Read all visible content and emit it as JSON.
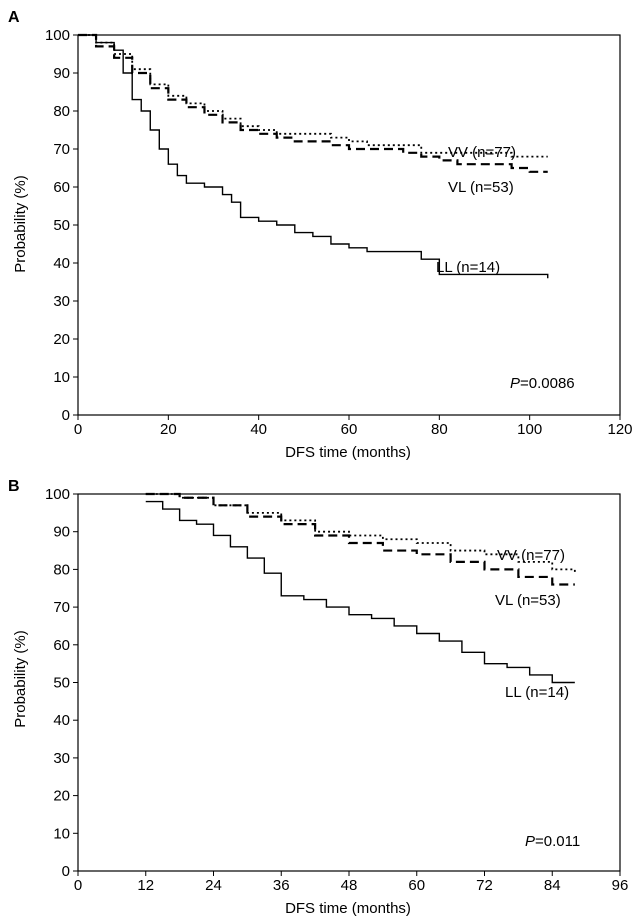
{
  "chart_data": [
    {
      "type": "line",
      "panel_label": "A",
      "xlabel": "DFS time (months)",
      "ylabel": "Probability (%)",
      "xlim": [
        0,
        120
      ],
      "ylim": [
        0,
        100
      ],
      "x_ticks": [
        "0",
        "20",
        "40",
        "60",
        "80",
        "100",
        "120"
      ],
      "y_ticks": [
        "0",
        "10",
        "20",
        "30",
        "40",
        "50",
        "60",
        "70",
        "80",
        "90",
        "100"
      ],
      "annotation": {
        "p_label": "P",
        "p_value": "=0.0086"
      },
      "series": [
        {
          "name": "VV (n=77)",
          "style": "dotted",
          "x": [
            0,
            4,
            8,
            12,
            16,
            20,
            24,
            28,
            32,
            36,
            40,
            44,
            48,
            52,
            56,
            60,
            64,
            68,
            72,
            76,
            80,
            84,
            88,
            92,
            96,
            100,
            104
          ],
          "y": [
            100,
            98,
            95,
            91,
            87,
            84,
            82,
            80,
            78,
            76,
            75,
            74,
            74,
            74,
            73,
            72,
            71,
            71,
            71,
            69,
            69,
            69,
            69,
            69,
            68,
            68,
            68
          ]
        },
        {
          "name": "VL (n=53)",
          "style": "dashed",
          "x": [
            0,
            4,
            8,
            12,
            16,
            20,
            24,
            28,
            32,
            36,
            40,
            44,
            48,
            52,
            56,
            60,
            64,
            68,
            72,
            76,
            80,
            84,
            88,
            92,
            96,
            100,
            104
          ],
          "y": [
            100,
            97,
            94,
            90,
            86,
            83,
            81,
            79,
            77,
            75,
            74,
            73,
            72,
            72,
            71,
            70,
            70,
            70,
            69,
            68,
            67,
            66,
            66,
            66,
            65,
            64,
            64
          ]
        },
        {
          "name": "LL (n=14)",
          "style": "solid",
          "x": [
            0,
            4,
            8,
            10,
            12,
            14,
            16,
            18,
            20,
            22,
            24,
            28,
            32,
            34,
            36,
            40,
            44,
            48,
            52,
            56,
            60,
            64,
            68,
            72,
            76,
            80,
            84,
            90,
            96,
            100,
            104
          ],
          "y": [
            100,
            98,
            96,
            90,
            83,
            80,
            75,
            70,
            66,
            63,
            61,
            60,
            58,
            56,
            52,
            51,
            50,
            48,
            47,
            45,
            44,
            43,
            43,
            43,
            41,
            37,
            37,
            37,
            37,
            37,
            36
          ]
        }
      ]
    },
    {
      "type": "line",
      "panel_label": "B",
      "xlabel": "DFS time (months)",
      "ylabel": "Probability (%)",
      "xlim": [
        0,
        96
      ],
      "ylim": [
        0,
        100
      ],
      "x_ticks": [
        "0",
        "12",
        "24",
        "36",
        "48",
        "60",
        "72",
        "84",
        "96"
      ],
      "y_ticks": [
        "0",
        "10",
        "20",
        "30",
        "40",
        "50",
        "60",
        "70",
        "80",
        "90",
        "100"
      ],
      "annotation": {
        "p_label": "P",
        "p_value": "=0.011"
      },
      "series": [
        {
          "name": "VV (n=77)",
          "style": "dotted",
          "x": [
            12,
            18,
            24,
            30,
            36,
            42,
            48,
            54,
            60,
            66,
            72,
            78,
            84,
            88
          ],
          "y": [
            100,
            99,
            97,
            95,
            93,
            90,
            89,
            88,
            87,
            85,
            84,
            82,
            80,
            79
          ]
        },
        {
          "name": "VL (n=53)",
          "style": "dashed",
          "x": [
            12,
            18,
            24,
            30,
            36,
            42,
            48,
            54,
            60,
            66,
            72,
            78,
            84,
            88
          ],
          "y": [
            100,
            99,
            97,
            94,
            92,
            89,
            87,
            85,
            84,
            82,
            80,
            78,
            76,
            76
          ]
        },
        {
          "name": "LL (n=14)",
          "style": "solid",
          "x": [
            12,
            15,
            18,
            21,
            24,
            27,
            30,
            33,
            36,
            40,
            44,
            48,
            52,
            56,
            60,
            64,
            68,
            72,
            76,
            80,
            84,
            88
          ],
          "y": [
            98,
            96,
            93,
            92,
            89,
            86,
            83,
            79,
            73,
            72,
            70,
            68,
            67,
            65,
            63,
            61,
            58,
            55,
            54,
            52,
            50,
            50
          ]
        }
      ]
    }
  ]
}
